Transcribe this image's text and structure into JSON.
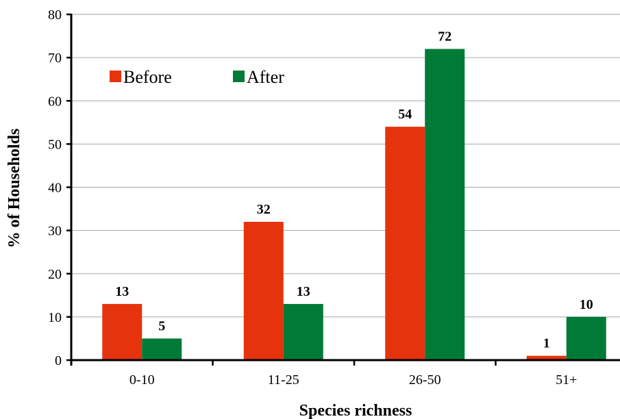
{
  "chart_data": {
    "type": "bar",
    "categories": [
      "0-10",
      "11-25",
      "26-50",
      "51+"
    ],
    "series": [
      {
        "name": "Before",
        "color": "#e5330d",
        "values": [
          13,
          32,
          54,
          1
        ]
      },
      {
        "name": "After",
        "color": "#007a37",
        "values": [
          5,
          13,
          72,
          10
        ]
      }
    ],
    "xlabel": "Species richness",
    "ylabel": "%   of  Households",
    "ylim": [
      0,
      80
    ],
    "yticks": [
      0,
      10,
      20,
      30,
      40,
      50,
      60,
      70,
      80
    ],
    "grid": true,
    "legend_position": "top-left",
    "data_labels": true
  }
}
